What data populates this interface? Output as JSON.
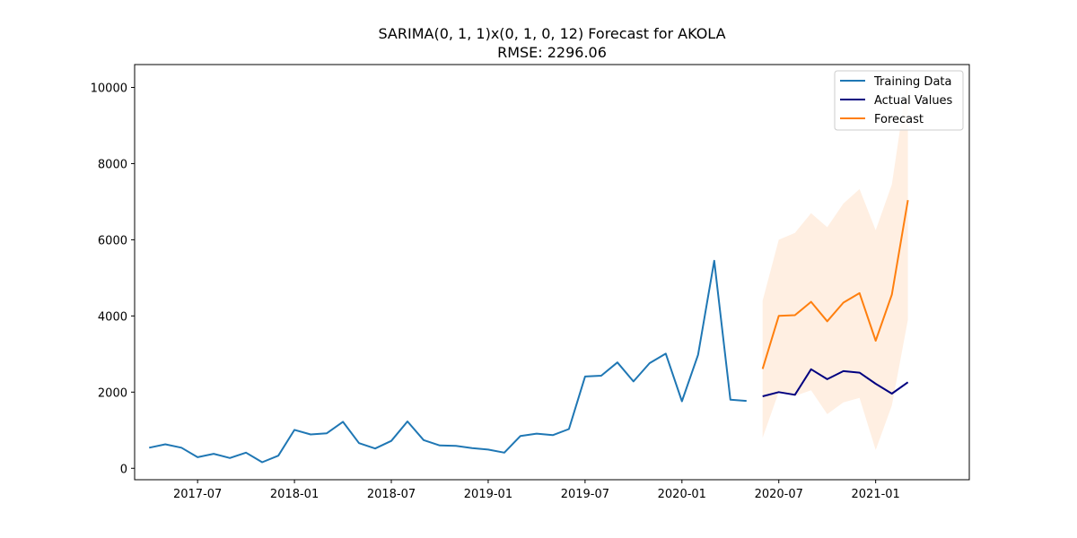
{
  "chart_data": {
    "type": "line",
    "title": "SARIMA(0, 1, 1)x(0, 1, 0, 12) Forecast for AKOLA",
    "subtitle": "RMSE: 2296.06",
    "xlabel": "",
    "ylabel": "",
    "ylim": [
      -300,
      10600
    ],
    "x_tick_labels": [
      "2017-07",
      "2018-01",
      "2018-07",
      "2019-01",
      "2019-07",
      "2020-01",
      "2020-07",
      "2021-01"
    ],
    "x_tick_months": [
      3,
      9,
      15,
      21,
      27,
      33,
      39,
      45
    ],
    "y_ticks": [
      0,
      2000,
      4000,
      6000,
      8000,
      10000
    ],
    "y_tick_labels": [
      "0",
      "2000",
      "4000",
      "6000",
      "8000",
      "10000"
    ],
    "legend_position": "top-right",
    "series": [
      {
        "name": "Training Data",
        "color": "#1f77b4",
        "start_month": 0,
        "values": [
          540,
          630,
          540,
          290,
          380,
          270,
          410,
          160,
          330,
          1010,
          890,
          920,
          1220,
          660,
          520,
          720,
          1230,
          740,
          600,
          590,
          530,
          490,
          410,
          850,
          910,
          870,
          1030,
          2410,
          2430,
          2780,
          2280,
          2760,
          3010,
          1760,
          2980,
          5450,
          1800,
          1770
        ]
      },
      {
        "name": "Actual Values",
        "color": "#000080",
        "start_month": 38,
        "values": [
          1890,
          2000,
          1930,
          2600,
          2340,
          2550,
          2510,
          2220,
          1960,
          2260
        ]
      },
      {
        "name": "Forecast",
        "color": "#ff7f0e",
        "start_month": 38,
        "values": [
          2610,
          4000,
          4020,
          4370,
          3860,
          4350,
          4600,
          3350,
          4560,
          7040
        ]
      }
    ],
    "confidence_interval": {
      "color": "#ff7f0e",
      "opacity": 0.12,
      "start_month": 38,
      "lower": [
        800,
        2000,
        1900,
        2050,
        1420,
        1730,
        1850,
        480,
        1650,
        3900
      ],
      "upper": [
        4400,
        6000,
        6180,
        6700,
        6330,
        6950,
        7330,
        6250,
        7450,
        10300
      ]
    }
  }
}
